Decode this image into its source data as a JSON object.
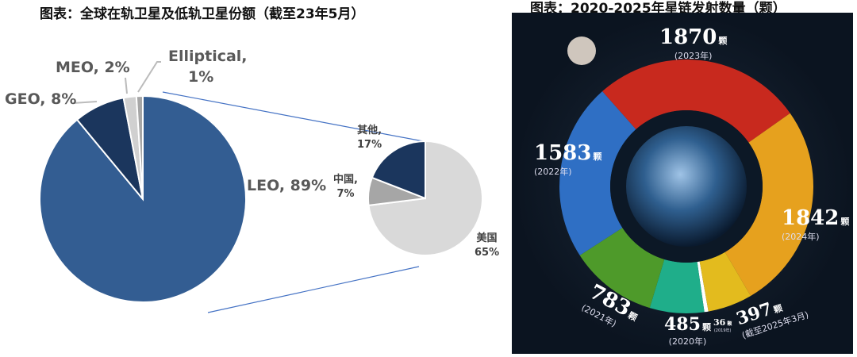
{
  "chart_data": [
    {
      "type": "pie",
      "title": "图表：全球在轨卫星及低轨卫星份额（截至23年5月）",
      "slices": [
        {
          "label": "LEO",
          "value": 89,
          "text": "LEO, 89%",
          "color": "#335D92"
        },
        {
          "label": "GEO",
          "value": 8,
          "text": "GEO, 8%",
          "color": "#1B365D"
        },
        {
          "label": "MEO",
          "value": 2,
          "text": "MEO, 2%",
          "color": "#D0D0D0"
        },
        {
          "label": "Elliptical",
          "value": 1,
          "text_1": "Elliptical,",
          "text_2": "1%",
          "color": "#A6A6A6"
        }
      ],
      "sub_pie": {
        "of": "LEO",
        "slices": [
          {
            "label": "美国",
            "value": 65,
            "pct": "65%",
            "color": "#D9D9D9"
          },
          {
            "label": "中国",
            "label_text": "中国,",
            "value": 7,
            "pct": "7%",
            "color": "#A6A6A6"
          },
          {
            "label": "其他",
            "label_text": "其他,",
            "value": 17,
            "pct": "17%",
            "color": "#1B365D"
          }
        ]
      }
    },
    {
      "type": "pie",
      "subtype": "donut",
      "title": "图表：2020-2025年星链发射数量（颗）",
      "unit": "颗",
      "series": [
        {
          "year": "2019",
          "year_label": "(2019年)",
          "value": 36,
          "color": "#FFFFFF"
        },
        {
          "year": "2020",
          "year_label": "(2020年)",
          "value": 485,
          "color": "#1FAE8A"
        },
        {
          "year": "2021",
          "year_label": "(2021年)",
          "value": 783,
          "color": "#4E9A2A"
        },
        {
          "year": "2022",
          "year_label": "(2022年)",
          "value": 1583,
          "color": "#2F6FC4"
        },
        {
          "year": "2023",
          "year_label": "(2023年)",
          "value": 1870,
          "color": "#C8291E"
        },
        {
          "year": "2024",
          "year_label": "(2024年)",
          "value": 1842,
          "color": "#E6A11E"
        },
        {
          "year": "2025",
          "year_label": "(截至2025年3月)",
          "value": 397,
          "color": "#E3BB1E"
        }
      ]
    }
  ]
}
